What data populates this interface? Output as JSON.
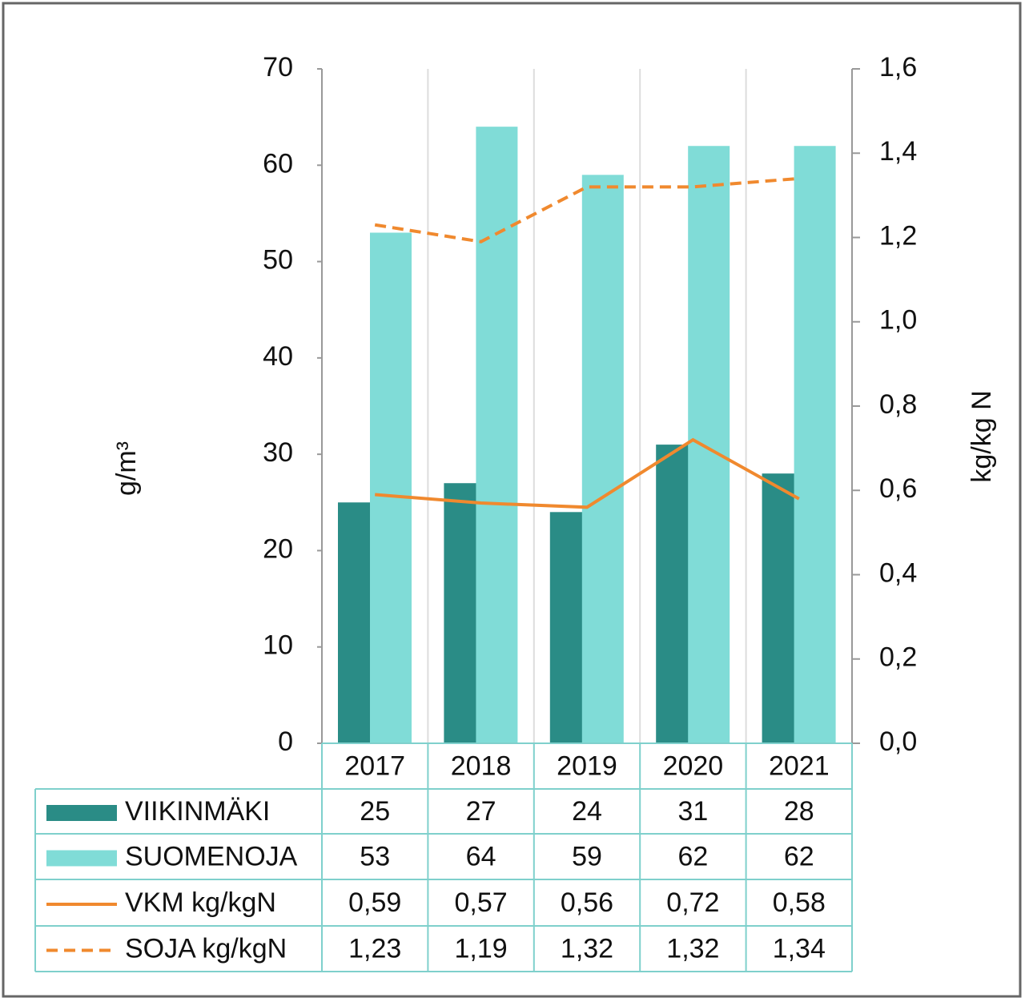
{
  "chart_data": {
    "type": "bar",
    "categories": [
      "2017",
      "2018",
      "2019",
      "2020",
      "2021"
    ],
    "y_label": "g/m³",
    "y2_label": "kg/kg N",
    "ylim": [
      0,
      70
    ],
    "yticks": [
      0,
      10,
      20,
      30,
      40,
      50,
      60,
      70
    ],
    "y2lim": [
      0,
      1.6
    ],
    "y2ticks": [
      {
        "value": 0,
        "label": "0,0"
      },
      {
        "value": 0.2,
        "label": "0,2"
      },
      {
        "value": 0.4,
        "label": "0,4"
      },
      {
        "value": 0.6,
        "label": "0,6"
      },
      {
        "value": 0.8,
        "label": "0,8"
      },
      {
        "value": 1.0,
        "label": "1,0"
      },
      {
        "value": 1.2,
        "label": "1,2"
      },
      {
        "value": 1.4,
        "label": "1,4"
      },
      {
        "value": 1.6,
        "label": "1,6"
      }
    ],
    "grid": false,
    "series": [
      {
        "name": "VIIKINMÄKI",
        "type": "bar",
        "color": "#2a8c86",
        "values": [
          25,
          27,
          24,
          31,
          28
        ]
      },
      {
        "name": "SUOMENOJA",
        "type": "bar",
        "color": "#80dcd7",
        "values": [
          53,
          64,
          59,
          62,
          62
        ]
      },
      {
        "name": "VKM kg/kgN",
        "type": "line",
        "axis": "y2",
        "color": "#f0892e",
        "dashed": false,
        "values": [
          0.59,
          0.57,
          0.56,
          0.72,
          0.58
        ],
        "value_labels": [
          "0,59",
          "0,57",
          "0,56",
          "0,72",
          "0,58"
        ]
      },
      {
        "name": "SOJA kg/kgN",
        "type": "line",
        "axis": "y2",
        "color": "#f0892e",
        "dashed": true,
        "values": [
          1.23,
          1.19,
          1.32,
          1.32,
          1.34
        ],
        "value_labels": [
          "1,23",
          "1,19",
          "1,32",
          "1,32",
          "1,34"
        ]
      }
    ]
  }
}
